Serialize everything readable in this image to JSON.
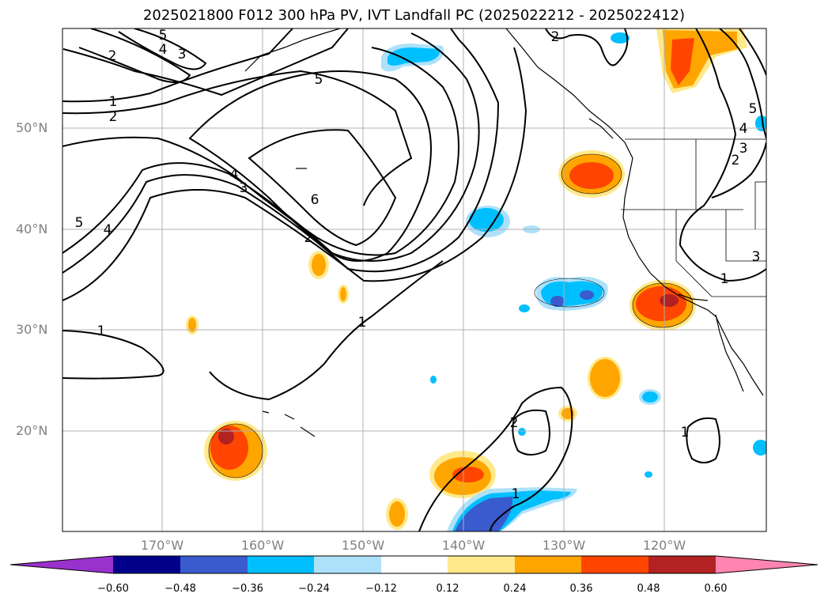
{
  "title": "2025021800 F012 300 hPa PV, IVT Landfall PC (2025022212 - 2025022412)",
  "lat_labels": [
    "50°N",
    "40°N",
    "30°N",
    "20°N"
  ],
  "lon_labels": [
    "170°W",
    "160°W",
    "150°W",
    "140°W",
    "130°W",
    "120°W"
  ],
  "colorbar": {
    "ticks": [
      "−0.60",
      "−0.48",
      "−0.36",
      "−0.24",
      "−0.12",
      "0.12",
      "0.24",
      "0.36",
      "0.48",
      "0.60"
    ],
    "colors": [
      "#9932CC",
      "#00008B",
      "#3A5BCD",
      "#00BFFF",
      "#ADE1FA",
      "#FFFFFF",
      "#FFE98A",
      "#FFA500",
      "#FF4500",
      "#B22222",
      "#FF85B0"
    ]
  },
  "contour_labels": [
    "5",
    "4",
    "3",
    "2",
    "1",
    "2",
    "5",
    "4",
    "3",
    "6",
    "2",
    "1",
    "1",
    "5",
    "4",
    "2",
    "5",
    "4",
    "3",
    "2",
    "3",
    "1",
    "2",
    "1",
    "1"
  ]
}
